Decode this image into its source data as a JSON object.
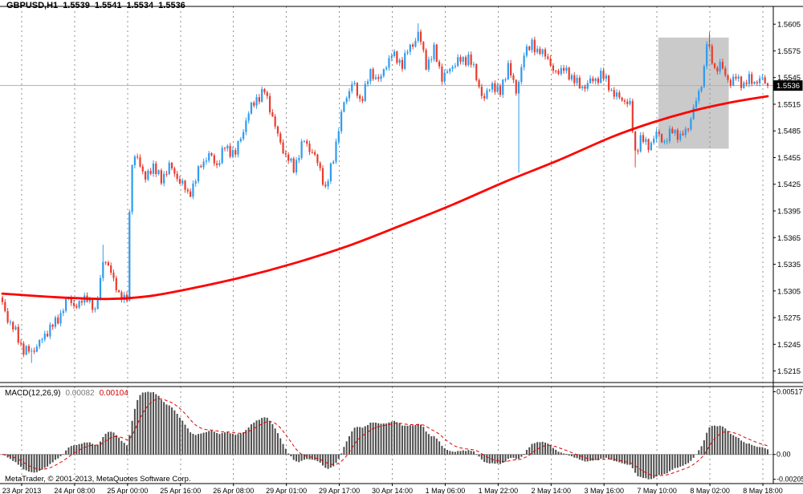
{
  "header": {
    "symbol_label": "GBPUSD,H1",
    "open": "1.5539",
    "high": "1.5541",
    "low": "1.5534",
    "close": "1.5536"
  },
  "macd_header": {
    "name": "MACD(12,26,9)",
    "value_main": "0.00082",
    "value_signal": "0.00104"
  },
  "footer": {
    "copyright": "MetaTrader, © 2001-2013, MetaQuotes Software Corp."
  },
  "colors": {
    "background": "#ffffff",
    "text": "#000000",
    "frame": "#000000",
    "bull": "#2f9bee",
    "bear": "#e93c2e",
    "ma_line": "#ff0000",
    "grid": "#909090",
    "bid_line": "#b0b0b0",
    "histogram": "#4d4d4d",
    "signal_line": "#e00000",
    "zero_line": "#9a9a9a",
    "highlight_box": "#cacaca",
    "badge_bg": "#000000",
    "badge_text": "#ffffff"
  },
  "chart_data": {
    "main": {
      "type": "candlestick",
      "symbol": "GBPUSD",
      "timeframe": "H1",
      "current": {
        "open": 1.5539,
        "high": 1.5541,
        "low": 1.5534,
        "close": 1.5536
      },
      "bid": 1.5536,
      "price_top": 1.5625,
      "price_bottom": 1.5202,
      "y_ticks": [
        "1.5605",
        "1.5575",
        "1.5545",
        "1.5515",
        "1.5485",
        "1.5455",
        "1.5425",
        "1.5395",
        "1.5365",
        "1.5335",
        "1.5305",
        "1.5275",
        "1.5245",
        "1.5215"
      ],
      "x_labels": [
        "23 Apr 2013",
        "24 Apr 08:00",
        "25 Apr 00:00",
        "25 Apr 16:00",
        "26 Apr 08:00",
        "29 Apr 01:00",
        "29 Apr 17:00",
        "30 Apr 14:00",
        "1 May 06:00",
        "1 May 22:00",
        "2 May 14:00",
        "3 May 16:00",
        "7 May 10:00",
        "8 May 02:00",
        "8 May 18:00"
      ],
      "bars_total": 290,
      "path_anchors": [
        [
          0,
          1.529
        ],
        [
          4,
          1.5262
        ],
        [
          8,
          1.524
        ],
        [
          11,
          1.5235
        ],
        [
          14,
          1.5248
        ],
        [
          16,
          1.5255
        ],
        [
          20,
          1.527
        ],
        [
          25,
          1.5295
        ],
        [
          29,
          1.5288
        ],
        [
          32,
          1.53
        ],
        [
          35,
          1.528
        ],
        [
          38,
          1.5338
        ],
        [
          41,
          1.533
        ],
        [
          44,
          1.5296
        ],
        [
          47,
          1.5302
        ],
        [
          48,
          1.539
        ],
        [
          49,
          1.5445
        ],
        [
          51,
          1.5458
        ],
        [
          54,
          1.543
        ],
        [
          57,
          1.5446
        ],
        [
          60,
          1.543
        ],
        [
          63,
          1.5445
        ],
        [
          67,
          1.543
        ],
        [
          70,
          1.5412
        ],
        [
          75,
          1.5445
        ],
        [
          78,
          1.546
        ],
        [
          81,
          1.5445
        ],
        [
          84,
          1.5468
        ],
        [
          88,
          1.5458
        ],
        [
          92,
          1.5498
        ],
        [
          96,
          1.5522
        ],
        [
          99,
          1.553
        ],
        [
          103,
          1.549
        ],
        [
          107,
          1.5455
        ],
        [
          110,
          1.5445
        ],
        [
          114,
          1.5473
        ],
        [
          117,
          1.5463
        ],
        [
          120,
          1.544
        ],
        [
          122,
          1.542
        ],
        [
          125,
          1.5455
        ],
        [
          129,
          1.5518
        ],
        [
          132,
          1.5538
        ],
        [
          135,
          1.552
        ],
        [
          139,
          1.5548
        ],
        [
          143,
          1.5545
        ],
        [
          147,
          1.5572
        ],
        [
          151,
          1.556
        ],
        [
          154,
          1.558
        ],
        [
          157,
          1.5594
        ],
        [
          160,
          1.556
        ],
        [
          163,
          1.5575
        ],
        [
          166,
          1.5545
        ],
        [
          169,
          1.5555
        ],
        [
          172,
          1.5563
        ],
        [
          176,
          1.5568
        ],
        [
          179,
          1.5545
        ],
        [
          182,
          1.552
        ],
        [
          185,
          1.5538
        ],
        [
          188,
          1.5528
        ],
        [
          191,
          1.5558
        ],
        [
          194,
          1.553
        ],
        [
          197,
          1.5568
        ],
        [
          200,
          1.5588
        ],
        [
          202,
          1.557
        ],
        [
          205,
          1.5575
        ],
        [
          208,
          1.555
        ],
        [
          212,
          1.5555
        ],
        [
          215,
          1.5545
        ],
        [
          218,
          1.5535
        ],
        [
          223,
          1.554
        ],
        [
          226,
          1.555
        ],
        [
          230,
          1.553
        ],
        [
          234,
          1.552
        ],
        [
          237,
          1.5514
        ],
        [
          239,
          1.5462
        ],
        [
          241,
          1.5474
        ],
        [
          244,
          1.547
        ],
        [
          247,
          1.548
        ],
        [
          250,
          1.5474
        ],
        [
          253,
          1.5485
        ],
        [
          256,
          1.5478
        ],
        [
          259,
          1.549
        ],
        [
          261,
          1.5508
        ],
        [
          263,
          1.5528
        ],
        [
          265,
          1.5556
        ],
        [
          266,
          1.5584
        ],
        [
          267,
          1.5572
        ],
        [
          269,
          1.5556
        ],
        [
          271,
          1.556
        ],
        [
          273,
          1.5546
        ],
        [
          275,
          1.554
        ],
        [
          277,
          1.5546
        ],
        [
          280,
          1.5535
        ],
        [
          282,
          1.5544
        ],
        [
          285,
          1.554
        ],
        [
          287,
          1.5541
        ],
        [
          289,
          1.5536
        ]
      ],
      "wick_spikes": [
        {
          "bar": 11,
          "low": 1.5224
        },
        {
          "bar": 38,
          "high": 1.5357
        },
        {
          "bar": 157,
          "high": 1.5606
        },
        {
          "bar": 195,
          "low": 1.5438
        },
        {
          "bar": 239,
          "low": 1.5444
        },
        {
          "bar": 267,
          "high": 1.5596
        }
      ],
      "ma_anchors": [
        [
          0,
          1.5302
        ],
        [
          20,
          1.5298
        ],
        [
          40,
          1.5296
        ],
        [
          55,
          1.5299
        ],
        [
          70,
          1.5307
        ],
        [
          90,
          1.532
        ],
        [
          110,
          1.5336
        ],
        [
          130,
          1.5355
        ],
        [
          150,
          1.5378
        ],
        [
          170,
          1.5402
        ],
        [
          190,
          1.5428
        ],
        [
          210,
          1.5452
        ],
        [
          230,
          1.5478
        ],
        [
          245,
          1.5494
        ],
        [
          260,
          1.5507
        ],
        [
          275,
          1.5517
        ],
        [
          289,
          1.5524
        ]
      ],
      "highlight_box": {
        "bar_start": 248,
        "bar_end": 274,
        "price_top": 1.559,
        "price_bottom": 1.5465
      }
    },
    "macd": {
      "type": "macd",
      "params": [
        12,
        26,
        9
      ],
      "y_ticks": [
        "0.00517",
        "0.00",
        "-0.00205"
      ],
      "value_top": 0.0056,
      "value_bottom": -0.0024,
      "scale_max": 0.00517,
      "scale_min": -0.00205,
      "last_main": 0.00082,
      "last_signal": 0.00104
    }
  }
}
